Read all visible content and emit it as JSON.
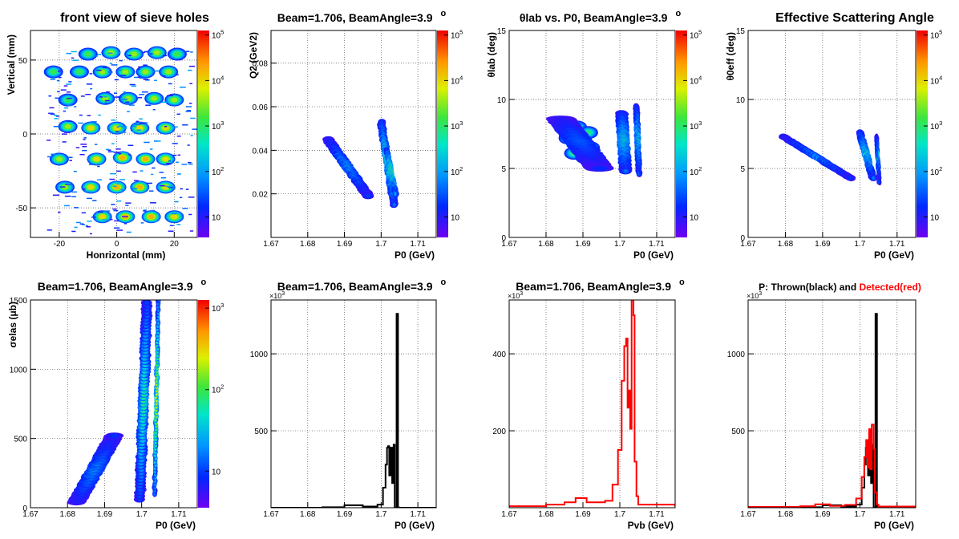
{
  "chart_data": [
    {
      "type": "heatmap",
      "title": "front view of sieve holes",
      "xlabel": "Honrizontal (mm)",
      "ylabel": "Vertical (mm)",
      "xlim": [
        -30,
        28
      ],
      "ylim": [
        -70,
        70
      ],
      "xticks": [
        "-20",
        "0",
        "20"
      ],
      "yticks": [
        "-50",
        "0",
        "50"
      ],
      "colorbar": {
        "scale": "log",
        "ticks": [
          "10",
          "10^2",
          "10^3",
          "10^4",
          "10^5"
        ]
      },
      "grid": true,
      "blobs": [
        {
          "x": -10,
          "y": 54,
          "v": 3
        },
        {
          "x": -2,
          "y": 55,
          "v": 3.5
        },
        {
          "x": 6,
          "y": 54,
          "v": 3.5
        },
        {
          "x": 14,
          "y": 55,
          "v": 3.5
        },
        {
          "x": 21,
          "y": 54,
          "v": 3
        },
        {
          "x": -22,
          "y": 42,
          "v": 3
        },
        {
          "x": -13,
          "y": 42,
          "v": 3
        },
        {
          "x": -5,
          "y": 42,
          "v": 3.5
        },
        {
          "x": 3,
          "y": 42,
          "v": 3.5
        },
        {
          "x": 10,
          "y": 42,
          "v": 3.5
        },
        {
          "x": 18,
          "y": 42,
          "v": 3.5
        },
        {
          "x": -17,
          "y": 23,
          "v": 3
        },
        {
          "x": -4,
          "y": 24,
          "v": 3.5
        },
        {
          "x": 4,
          "y": 24,
          "v": 3.5
        },
        {
          "x": 13,
          "y": 24,
          "v": 3.5
        },
        {
          "x": 20,
          "y": 23,
          "v": 3.5
        },
        {
          "x": -17,
          "y": 5,
          "v": 3.5
        },
        {
          "x": -9,
          "y": 4,
          "v": 4
        },
        {
          "x": 0,
          "y": 4,
          "v": 4
        },
        {
          "x": 8,
          "y": 4,
          "v": 4
        },
        {
          "x": 17,
          "y": 4,
          "v": 4
        },
        {
          "x": -20,
          "y": -17,
          "v": 3.5
        },
        {
          "x": -7,
          "y": -17,
          "v": 4
        },
        {
          "x": 2,
          "y": -16,
          "v": 4.3
        },
        {
          "x": 10,
          "y": -17,
          "v": 4.3
        },
        {
          "x": 17,
          "y": -17,
          "v": 4
        },
        {
          "x": -18,
          "y": -36,
          "v": 3.5
        },
        {
          "x": -9,
          "y": -36,
          "v": 4
        },
        {
          "x": 0,
          "y": -36,
          "v": 4.3
        },
        {
          "x": 8,
          "y": -36,
          "v": 4.3
        },
        {
          "x": 17,
          "y": -36,
          "v": 4
        },
        {
          "x": -5,
          "y": -56,
          "v": 4
        },
        {
          "x": 3,
          "y": -56,
          "v": 4.3
        },
        {
          "x": 12,
          "y": -56,
          "v": 4.3
        },
        {
          "x": 20,
          "y": -56,
          "v": 4
        }
      ]
    },
    {
      "type": "heatmap",
      "title": "Beam=1.706, BeamAngle=3.9",
      "title_sup": "o",
      "xlabel": "P0 (GeV)",
      "ylabel": "Q2 (GeV2)",
      "xlim": [
        1.67,
        1.715
      ],
      "ylim": [
        0,
        0.095
      ],
      "xticks": [
        "1.67",
        "1.68",
        "1.69",
        "1.7",
        "1.71"
      ],
      "yticks": [
        "0.02",
        "0.04",
        "0.06",
        "0.08"
      ],
      "colorbar": {
        "scale": "log",
        "ticks": [
          "10",
          "10^2",
          "10^3",
          "10^4",
          "10^5"
        ]
      },
      "grid": true,
      "bands": [
        {
          "x0": 1.6855,
          "y0": 0.045,
          "x1": 1.6965,
          "y1": 0.019,
          "w": 0.0016,
          "v": 2.6
        },
        {
          "x0": 1.7,
          "y0": 0.053,
          "x1": 1.7035,
          "y1": 0.015,
          "w": 0.0011,
          "v": 3.6
        },
        {
          "x0": 1.7015,
          "y0": 0.04,
          "x1": 1.704,
          "y1": 0.02,
          "w": 0.0007,
          "v": 4.8
        }
      ]
    },
    {
      "type": "heatmap",
      "title": "θlab vs. P0, BeamAngle=3.9",
      "title_sup": "o",
      "xlabel": "P0 (GeV)",
      "ylabel": "θlab (deg)",
      "xlim": [
        1.67,
        1.715
      ],
      "ylim": [
        0,
        15
      ],
      "xticks": [
        "1.67",
        "1.68",
        "1.69",
        "1.7",
        "1.71"
      ],
      "yticks": [
        "0",
        "5",
        "10",
        "15"
      ],
      "colorbar": {
        "scale": "log",
        "ticks": [
          "10",
          "10^2",
          "10^3",
          "10^4",
          "10^5"
        ]
      },
      "grid": true,
      "blobs": [
        {
          "x": 1.6855,
          "y": 8.3,
          "v": 2.7
        },
        {
          "x": 1.6885,
          "y": 8.0,
          "v": 2.7
        },
        {
          "x": 1.6915,
          "y": 7.6,
          "v": 2.7
        },
        {
          "x": 1.686,
          "y": 7.2,
          "v": 2.7
        },
        {
          "x": 1.689,
          "y": 6.9,
          "v": 2.7
        },
        {
          "x": 1.692,
          "y": 6.5,
          "v": 2.7
        },
        {
          "x": 1.6875,
          "y": 6.1,
          "v": 2.7
        },
        {
          "x": 1.6905,
          "y": 5.8,
          "v": 2.7
        },
        {
          "x": 1.6935,
          "y": 5.5,
          "v": 2.7
        }
      ],
      "bands": [
        {
          "x0": 1.684,
          "y0": 8.6,
          "x1": 1.6945,
          "y1": 5.0,
          "w": 0.004,
          "v": 2.2
        },
        {
          "x0": 1.7005,
          "y0": 9.0,
          "x1": 1.7015,
          "y1": 4.8,
          "w": 0.0017,
          "v": 3.6
        },
        {
          "x0": 1.7045,
          "y0": 9.5,
          "x1": 1.7052,
          "y1": 4.6,
          "w": 0.0008,
          "v": 3.2
        }
      ]
    },
    {
      "type": "heatmap",
      "title": "Effective Scattering Angle",
      "xlabel": "P0 (GeV)",
      "ylabel": "θ0eff (deg)",
      "xlim": [
        1.67,
        1.715
      ],
      "ylim": [
        0,
        15
      ],
      "xticks": [
        "1.67",
        "1.68",
        "1.69",
        "1.7",
        "1.71"
      ],
      "yticks": [
        "0",
        "5",
        "10",
        "15"
      ],
      "colorbar": {
        "scale": "log",
        "ticks": [
          "10",
          "10^2",
          "10^3",
          "10^4",
          "10^5"
        ]
      },
      "grid": true,
      "bands": [
        {
          "x0": 1.6795,
          "y0": 7.3,
          "x1": 1.6975,
          "y1": 4.3,
          "w": 0.0012,
          "v": 2.5
        },
        {
          "x0": 1.7,
          "y0": 7.6,
          "x1": 1.7035,
          "y1": 4.3,
          "w": 0.001,
          "v": 3.8
        },
        {
          "x0": 1.7045,
          "y0": 7.3,
          "x1": 1.7052,
          "y1": 4.0,
          "w": 0.0005,
          "v": 2.8
        }
      ]
    },
    {
      "type": "heatmap",
      "title": "Beam=1.706, BeamAngle=3.9",
      "title_sup": "o",
      "xlabel": "P0 (GeV)",
      "ylabel": "σelas (μb)",
      "xlim": [
        1.67,
        1.715
      ],
      "ylim": [
        0,
        1500
      ],
      "xticks": [
        "1.67",
        "1.68",
        "1.69",
        "1.7",
        "1.71"
      ],
      "yticks": [
        "0",
        "500",
        "1000",
        "1500"
      ],
      "colorbar": {
        "scale": "log",
        "ticks": [
          "10",
          "10^2",
          "10^3"
        ]
      },
      "grid": true,
      "bands": [
        {
          "x0": 1.6825,
          "y0": 40,
          "x1": 1.6925,
          "y1": 520,
          "w": 0.0025,
          "v": 1.5
        },
        {
          "x0": 1.6995,
          "y0": 60,
          "x1": 1.7015,
          "y1": 1480,
          "w": 0.0015,
          "v": 1.7
        },
        {
          "x0": 1.7035,
          "y0": 100,
          "x1": 1.7045,
          "y1": 1500,
          "w": 0.0006,
          "v": 2.4
        }
      ]
    },
    {
      "type": "line",
      "title": "Beam=1.706, BeamAngle=3.9",
      "title_sup": "o",
      "xlabel": "P0 (GeV)",
      "ylabel": "",
      "exponent_label": "×10^3",
      "xlim": [
        1.67,
        1.715
      ],
      "ylim": [
        0,
        1350000
      ],
      "xticks": [
        "1.67",
        "1.68",
        "1.69",
        "1.7",
        "1.71"
      ],
      "yticks": [
        "500",
        "1000"
      ],
      "grid": true,
      "series": [
        {
          "color": "#000000",
          "points": [
            [
              1.67,
              0
            ],
            [
              1.684,
              3000
            ],
            [
              1.69,
              16000
            ],
            [
              1.695,
              8000
            ],
            [
              1.699,
              20000
            ],
            [
              1.7005,
              130000
            ],
            [
              1.7012,
              280000
            ],
            [
              1.7016,
              390000
            ],
            [
              1.7019,
              400000
            ],
            [
              1.7022,
              210000
            ],
            [
              1.7026,
              390000
            ],
            [
              1.703,
              160000
            ],
            [
              1.7034,
              410000
            ],
            [
              1.7037,
              1000
            ],
            [
              1.7042,
              1260000
            ],
            [
              1.7046,
              1000
            ],
            [
              1.705,
              0
            ],
            [
              1.715,
              0
            ]
          ]
        }
      ]
    },
    {
      "type": "line",
      "title": "Beam=1.706, BeamAngle=3.9",
      "title_sup": "o",
      "xlabel": "Pvb (GeV)",
      "ylabel": "",
      "exponent_label": "×10^3",
      "xlim": [
        1.67,
        1.715
      ],
      "ylim": [
        0,
        540000
      ],
      "xticks": [
        "1.67",
        "1.68",
        "1.69",
        "1.7",
        "1.71"
      ],
      "yticks": [
        "200",
        "400"
      ],
      "grid": true,
      "series": [
        {
          "color": "#ff0000",
          "points": [
            [
              1.67,
              4000
            ],
            [
              1.68,
              8000
            ],
            [
              1.685,
              14000
            ],
            [
              1.688,
              25000
            ],
            [
              1.691,
              14000
            ],
            [
              1.696,
              18000
            ],
            [
              1.698,
              60000
            ],
            [
              1.6995,
              150000
            ],
            [
              1.7005,
              330000
            ],
            [
              1.7012,
              420000
            ],
            [
              1.7017,
              440000
            ],
            [
              1.7021,
              260000
            ],
            [
              1.7025,
              305000
            ],
            [
              1.7028,
              205000
            ],
            [
              1.7032,
              540000
            ],
            [
              1.7037,
              500000
            ],
            [
              1.704,
              120000
            ],
            [
              1.7045,
              30000
            ],
            [
              1.705,
              8000
            ],
            [
              1.715,
              3000
            ]
          ]
        }
      ]
    },
    {
      "type": "line",
      "title": "P: Thrown(black) and Detected(red)",
      "title_parts": [
        "P: Thrown(black) and ",
        "Detected(red)"
      ],
      "xlabel": "P0 (GeV)",
      "ylabel": "",
      "exponent_label": "×10^3",
      "xlim": [
        1.67,
        1.715
      ],
      "ylim": [
        0,
        1350000
      ],
      "xticks": [
        "1.67",
        "1.68",
        "1.69",
        "1.7",
        "1.71"
      ],
      "yticks": [
        "500",
        "1000"
      ],
      "grid": true,
      "series": [
        {
          "name": "Thrown",
          "color": "#000000",
          "points": [
            [
              1.67,
              0
            ],
            [
              1.684,
              3000
            ],
            [
              1.69,
              16000
            ],
            [
              1.695,
              8000
            ],
            [
              1.699,
              20000
            ],
            [
              1.7005,
              130000
            ],
            [
              1.7012,
              280000
            ],
            [
              1.7016,
              390000
            ],
            [
              1.7019,
              400000
            ],
            [
              1.7022,
              210000
            ],
            [
              1.7026,
              390000
            ],
            [
              1.703,
              160000
            ],
            [
              1.7034,
              410000
            ],
            [
              1.7037,
              1000
            ],
            [
              1.7042,
              1260000
            ],
            [
              1.7046,
              1000
            ],
            [
              1.705,
              0
            ],
            [
              1.715,
              0
            ]
          ]
        },
        {
          "name": "Detected",
          "color": "#ff0000",
          "points": [
            [
              1.67,
              5000
            ],
            [
              1.684,
              10000
            ],
            [
              1.688,
              22000
            ],
            [
              1.692,
              12000
            ],
            [
              1.696,
              18000
            ],
            [
              1.699,
              60000
            ],
            [
              1.7005,
              200000
            ],
            [
              1.7012,
              330000
            ],
            [
              1.7017,
              440000
            ],
            [
              1.7021,
              260000
            ],
            [
              1.7025,
              510000
            ],
            [
              1.7028,
              250000
            ],
            [
              1.7032,
              540000
            ],
            [
              1.7037,
              380000
            ],
            [
              1.704,
              100000
            ],
            [
              1.7045,
              20000
            ],
            [
              1.705,
              8000
            ],
            [
              1.715,
              3000
            ]
          ]
        }
      ]
    }
  ]
}
